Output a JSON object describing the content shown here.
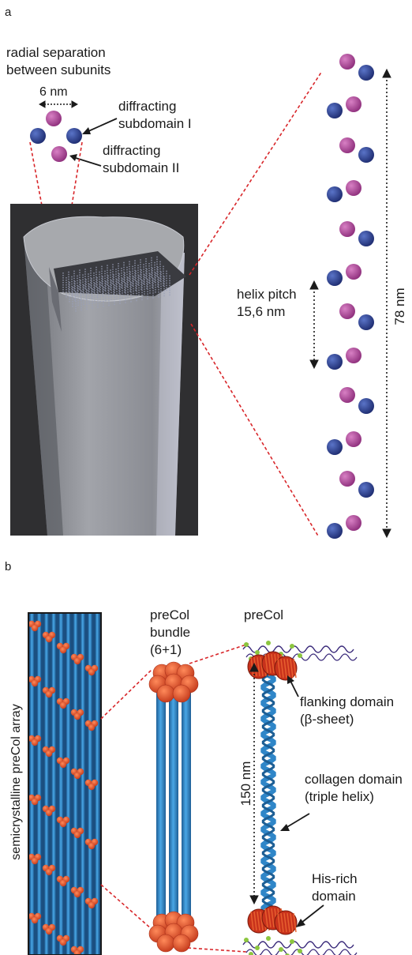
{
  "panel_a": {
    "letter": "a",
    "radial_label_line1": "radial separation",
    "radial_label_line2": "between subunits",
    "spacing_label": "6 nm",
    "subdomain1_line1": "diffracting",
    "subdomain1_line2": "subdomain I",
    "subdomain2_line1": "diffracting",
    "subdomain2_line2": "subdomain II",
    "pitch_line1": "helix pitch",
    "pitch_line2": "15,6 nm",
    "length_label": "78 nm",
    "colors": {
      "subunit_blue": "#2b3a8c",
      "subunit_magenta": "#b0479a",
      "guide_red": "#d8262a",
      "fiber_gray": "#8a8c92"
    }
  },
  "panel_b": {
    "letter": "b",
    "array_label": "semicrystalline preCol array",
    "bundle_line1": "preCol",
    "bundle_line2": "bundle",
    "bundle_line3": "(6+1)",
    "precol_title": "preCol",
    "flanking_line1": "flanking domain",
    "flanking_line2": "(β-sheet)",
    "collagen_line1": "collagen domain",
    "collagen_line2": "(triple helix)",
    "length_label": "150 nm",
    "his_line1": "His-rich",
    "his_line2": "domain",
    "colors": {
      "rod_blue": "#2f86c8",
      "cap_orange": "#e8552a",
      "his_green": "#8cc63f"
    }
  }
}
